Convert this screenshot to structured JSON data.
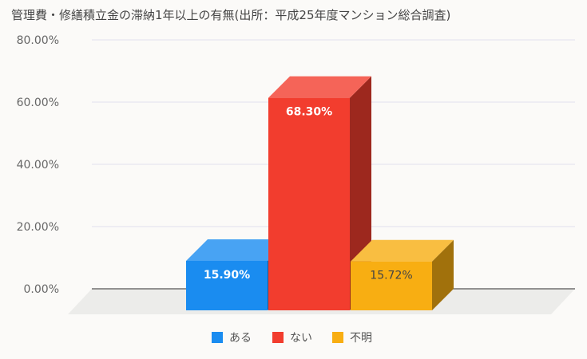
{
  "chart_data": {
    "type": "bar",
    "title": "管理費・修繕積立金の滞納1年以上の有無(出所：平成25年度マンション総合調査)",
    "categories": [
      "ある",
      "ない",
      "不明"
    ],
    "values": [
      15.9,
      68.3,
      15.72
    ],
    "value_labels": [
      "15.90%",
      "68.30%",
      "15.72%"
    ],
    "ylim": [
      0,
      80
    ],
    "yticks": [
      0,
      20,
      40,
      60,
      80
    ],
    "ytick_labels": [
      "0.00%",
      "20.00%",
      "40.00%",
      "60.00%",
      "80.00%"
    ],
    "xlabel": "",
    "ylabel": "",
    "grid": true,
    "legend_position": "bottom",
    "style": "3d-bar",
    "colors": [
      "#1a8cf0",
      "#f23d2e",
      "#f8ae12"
    ],
    "label_colors": [
      "#ffffff",
      "#ffffff",
      "#444444"
    ]
  }
}
